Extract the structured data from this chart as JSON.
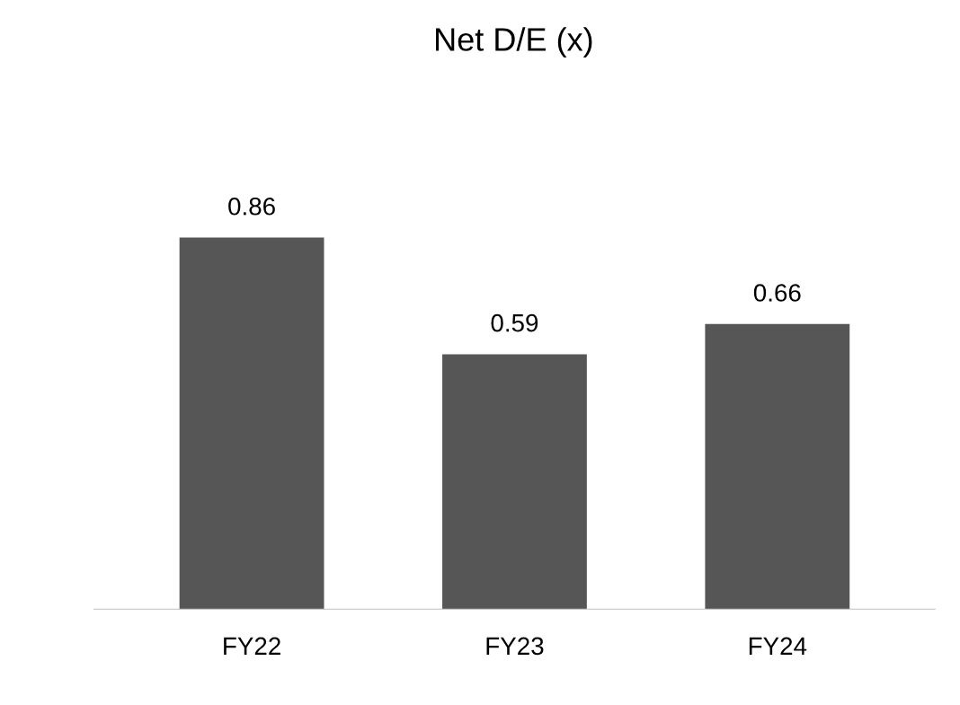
{
  "chart_data": {
    "type": "bar",
    "title": "Net D/E (x)",
    "categories": [
      "FY22",
      "FY23",
      "FY24"
    ],
    "values": [
      0.86,
      0.59,
      0.66
    ],
    "color": "#565656",
    "data_labels": true,
    "grid": false,
    "legend": false
  }
}
